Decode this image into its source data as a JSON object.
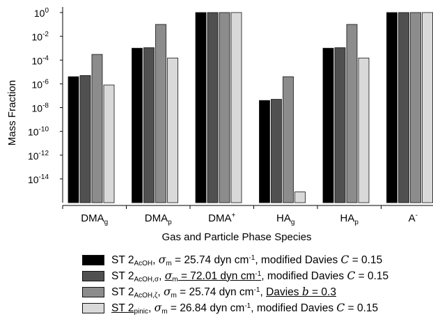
{
  "chart_data": {
    "type": "bar",
    "ylabel": "Mass Fraction",
    "xlabel": "Gas and Particle Phase Species",
    "yscale": "log",
    "ylim": [
      1e-16,
      1
    ],
    "y_ticks": [
      {
        "value": 1,
        "base": "10",
        "exp": "0"
      },
      {
        "value": 0.01,
        "base": "10",
        "exp": "-2"
      },
      {
        "value": 0.0001,
        "base": "10",
        "exp": "-4"
      },
      {
        "value": 1e-06,
        "base": "10",
        "exp": "-6"
      },
      {
        "value": 1e-08,
        "base": "10",
        "exp": "-8"
      },
      {
        "value": 1e-10,
        "base": "10",
        "exp": "-10"
      },
      {
        "value": 1e-12,
        "base": "10",
        "exp": "-12"
      },
      {
        "value": 1e-14,
        "base": "10",
        "exp": "-14"
      }
    ],
    "categories": [
      {
        "main": "DMA",
        "sub": "g",
        "sup": ""
      },
      {
        "main": "DMA",
        "sub": "p",
        "sup": ""
      },
      {
        "main": "DMA",
        "sub": "",
        "sup": "+"
      },
      {
        "main": "HA",
        "sub": "g",
        "sup": ""
      },
      {
        "main": "HA",
        "sub": "p",
        "sup": ""
      },
      {
        "main": "A",
        "sub": "",
        "sup": "-"
      }
    ],
    "series": [
      {
        "color": "#000000",
        "values": [
          4e-06,
          0.001,
          1,
          4e-08,
          0.001,
          1
        ]
      },
      {
        "color": "#505050",
        "values": [
          5e-06,
          0.0011,
          1,
          5e-08,
          0.0011,
          1
        ]
      },
      {
        "color": "#8c8c8c",
        "values": [
          0.0003,
          0.1,
          1,
          4e-06,
          0.1,
          1
        ]
      },
      {
        "color": "#d9d9d9",
        "values": [
          8e-07,
          0.00015,
          1,
          8e-16,
          0.00015,
          1
        ]
      }
    ],
    "grid": false
  },
  "legend": {
    "s1": {
      "pre": "ST 2",
      "sub": "AcOH",
      "sigma": "σ",
      "msub": "m",
      "eq": " = 25.74 dyn cm",
      "unit_exp": "-1",
      "rest": ", modified Davies ",
      "C": "C",
      "val": " = 0.15"
    },
    "s2": {
      "pre": "ST 2",
      "sub": "AcOH,σ",
      "sigma": "σ",
      "msub": "m",
      "eq": " = 72.01 dyn cm",
      "unit_exp": "-1",
      "rest": ", modified Davies ",
      "C": "C",
      "val": " = 0.15"
    },
    "s3": {
      "pre": "ST 2",
      "sub": "AcOH,ζ",
      "sigma": "σ",
      "msub": "m",
      "eq": " = 25.74 dyn cm",
      "unit_exp": "-1",
      "rest": ", ",
      "davies": "Davies ",
      "b": "b",
      "val": " = 0.3"
    },
    "s4": {
      "pre": "ST 2",
      "sub": "pinic",
      "sigma": "σ",
      "msub": "m",
      "eq": " = 26.84 dyn cm",
      "unit_exp": "-1",
      "rest": ", modified Davies ",
      "C": "C",
      "val": " = 0.15"
    }
  }
}
